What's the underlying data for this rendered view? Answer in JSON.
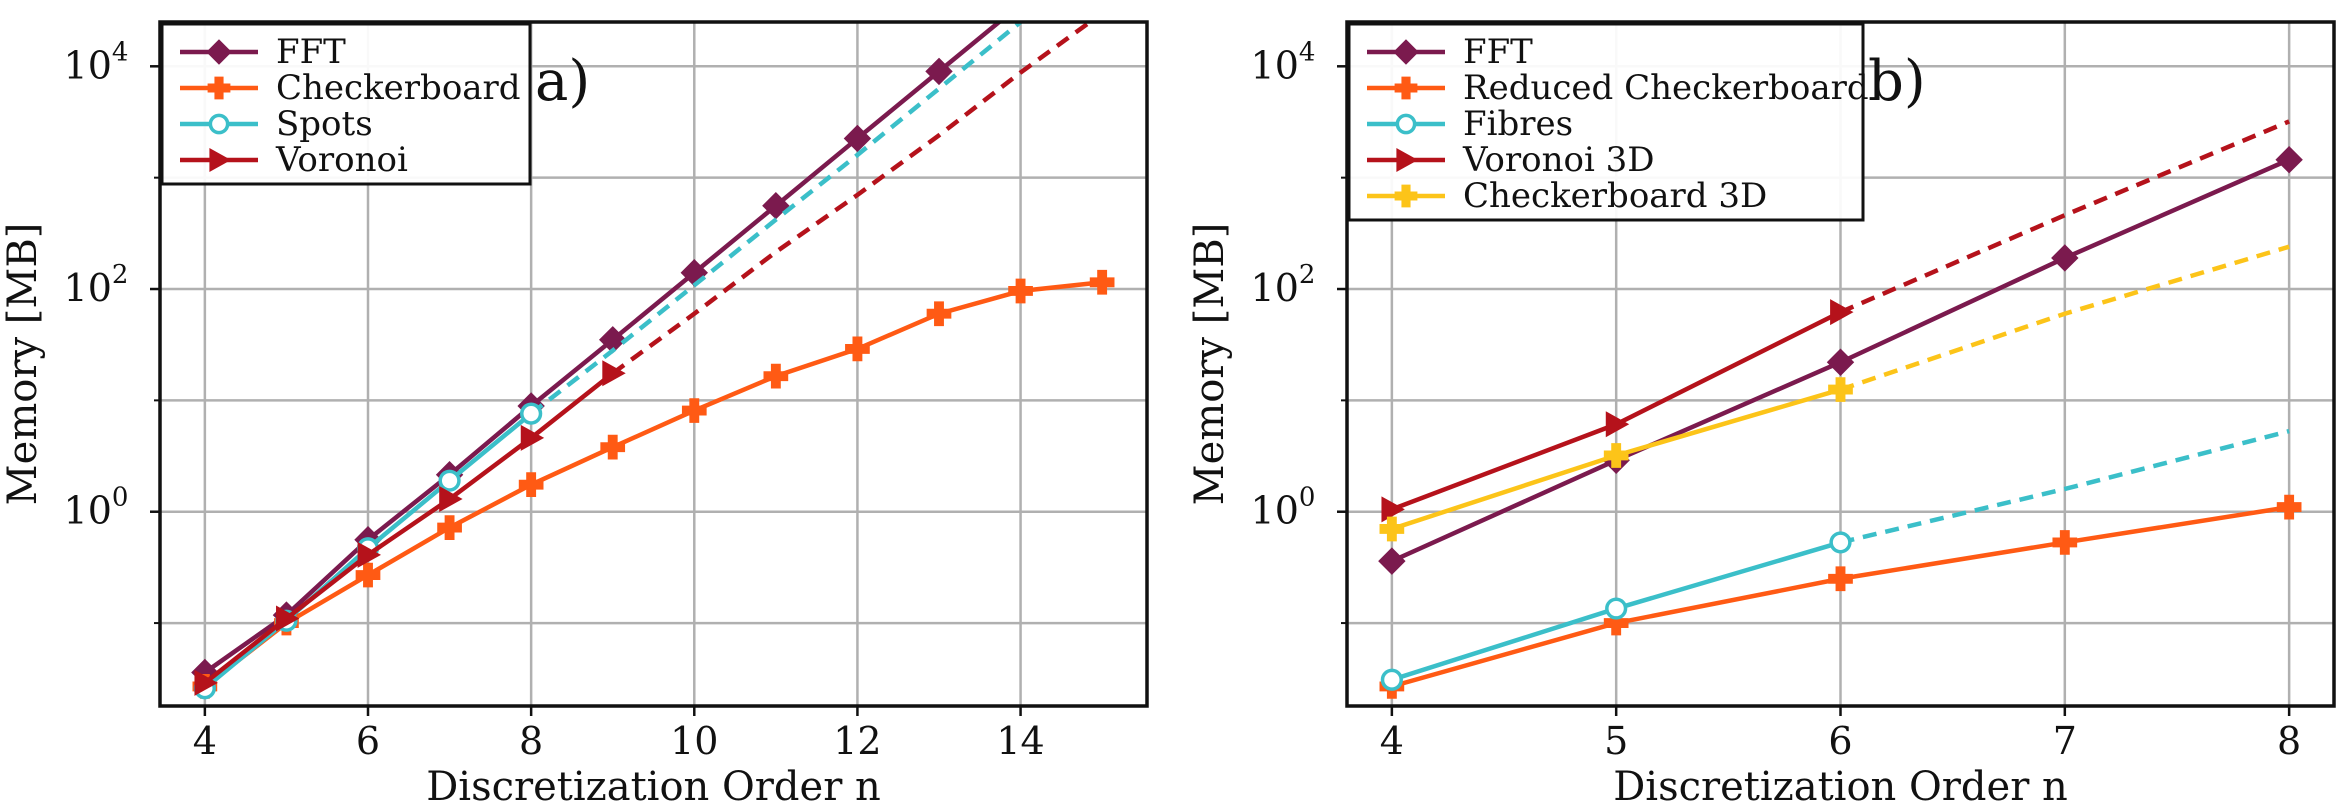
{
  "chart_data": [
    {
      "type": "line",
      "panel_label": "a)",
      "xlabel": "Discretization Order n",
      "ylabel": "Memory [MB]",
      "yscale": "log",
      "xlim": [
        3.45,
        15.55
      ],
      "ylim": [
        0.018,
        25000
      ],
      "xticks": [
        4,
        6,
        8,
        10,
        12,
        14
      ],
      "xtick_labels": [
        "4",
        "6",
        "8",
        "10",
        "12",
        "14"
      ],
      "yticks": [
        1,
        100,
        10000
      ],
      "ytick_labels": [
        {
          "base": "10",
          "exp": "0"
        },
        {
          "base": "10",
          "exp": "2"
        },
        {
          "base": "10",
          "exp": "4"
        }
      ],
      "minor_yticks": [
        0.1,
        10,
        1000
      ],
      "grid": true,
      "legend_position": "top-left",
      "series": [
        {
          "name": "FFT",
          "color": "#7b1a4e",
          "marker": "diamond",
          "solid_until": 14,
          "x": [
            4,
            5,
            6,
            7,
            8,
            9,
            10,
            11,
            12,
            13,
            14
          ],
          "y": [
            0.036,
            0.118,
            0.56,
            2.15,
            8.9,
            35,
            140,
            560,
            2250,
            9000,
            36000
          ]
        },
        {
          "name": "Checkerboard",
          "color": "#ff5a14",
          "marker": "plus",
          "solid_until": 15,
          "x": [
            4,
            5,
            6,
            7,
            8,
            9,
            10,
            11,
            12,
            13,
            14,
            15
          ],
          "y": [
            0.027,
            0.1,
            0.27,
            0.72,
            1.75,
            3.8,
            8.1,
            16.5,
            29,
            60,
            96,
            115
          ]
        },
        {
          "name": "Spots",
          "color": "#3bbfc9",
          "marker": "circle-open",
          "solid_until": 8,
          "x": [
            4,
            5,
            6,
            7,
            8,
            9,
            10,
            11,
            12,
            13,
            14
          ],
          "y": [
            0.026,
            0.105,
            0.47,
            1.9,
            7.6,
            28,
            108,
            420,
            1600,
            6300,
            25000
          ]
        },
        {
          "name": "Voronoi",
          "color": "#b5121b",
          "marker": "triangle-right",
          "solid_until": 9,
          "x": [
            4,
            5,
            6,
            7,
            8,
            9,
            10,
            11,
            12,
            13,
            14,
            15
          ],
          "y": [
            0.029,
            0.11,
            0.41,
            1.3,
            4.6,
            17.5,
            60,
            215,
            700,
            2400,
            8800,
            30000
          ]
        }
      ]
    },
    {
      "type": "line",
      "panel_label": "b)",
      "xlabel": "Discretization Order n",
      "ylabel": "Memory [MB]",
      "yscale": "log",
      "xlim": [
        3.8,
        8.2
      ],
      "ylim": [
        0.018,
        25000
      ],
      "xticks": [
        4,
        5,
        6,
        7,
        8
      ],
      "xtick_labels": [
        "4",
        "5",
        "6",
        "7",
        "8"
      ],
      "yticks": [
        1,
        100,
        10000
      ],
      "ytick_labels": [
        {
          "base": "10",
          "exp": "0"
        },
        {
          "base": "10",
          "exp": "2"
        },
        {
          "base": "10",
          "exp": "4"
        }
      ],
      "minor_yticks": [
        0.1,
        10,
        1000
      ],
      "grid": true,
      "legend_position": "top-left",
      "series": [
        {
          "name": "FFT",
          "color": "#7b1a4e",
          "marker": "diamond",
          "solid_until": 8,
          "x": [
            4,
            5,
            6,
            7,
            8
          ],
          "y": [
            0.36,
            2.9,
            22,
            190,
            1450
          ]
        },
        {
          "name": "Reduced Checkerboard",
          "color": "#ff5a14",
          "marker": "plus",
          "solid_until": 8,
          "x": [
            4,
            5,
            6,
            7,
            8
          ],
          "y": [
            0.027,
            0.1,
            0.25,
            0.53,
            1.1
          ]
        },
        {
          "name": "Fibres",
          "color": "#3bbfc9",
          "marker": "circle-open",
          "solid_until": 6,
          "x": [
            4,
            5,
            6,
            7,
            8
          ],
          "y": [
            0.031,
            0.135,
            0.53,
            1.6,
            5.3
          ]
        },
        {
          "name": "Voronoi 3D",
          "color": "#b5121b",
          "marker": "triangle-right",
          "solid_until": 6,
          "x": [
            4,
            5,
            6,
            7,
            8
          ],
          "y": [
            1.05,
            6.1,
            62,
            460,
            3200
          ]
        },
        {
          "name": "Checkerboard 3D",
          "color": "#fcc419",
          "marker": "plus",
          "solid_until": 6,
          "x": [
            4,
            5,
            6,
            7,
            8
          ],
          "y": [
            0.7,
            3.2,
            12.5,
            60,
            240
          ]
        }
      ]
    }
  ]
}
